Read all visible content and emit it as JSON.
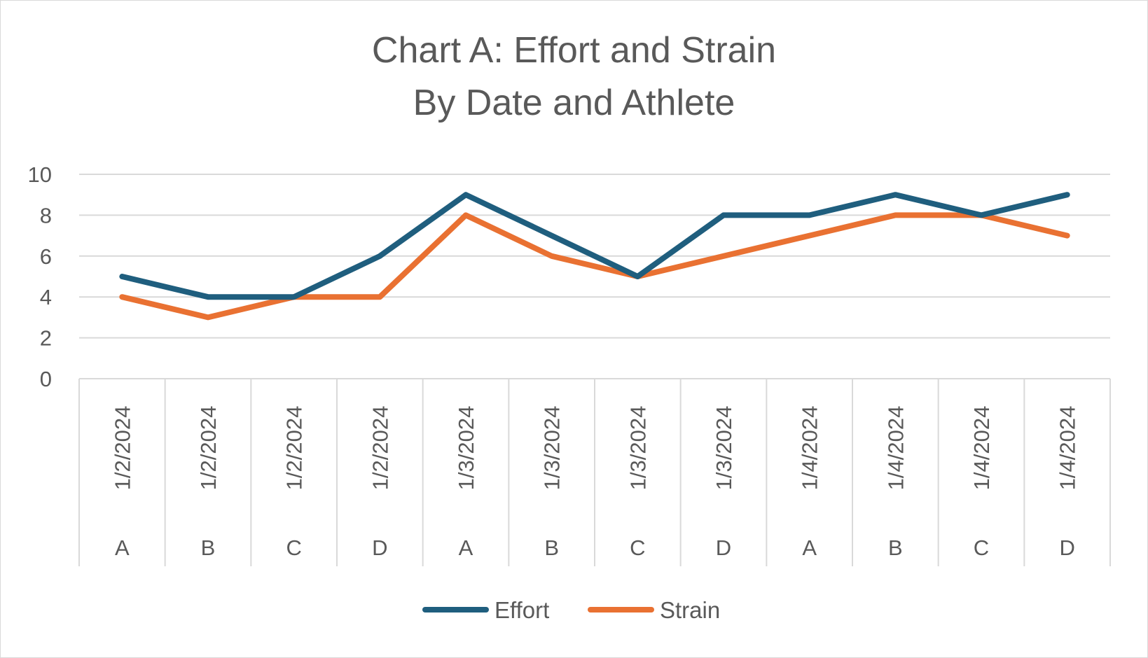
{
  "chart_data": {
    "type": "line",
    "title": "Chart A: Effort and Strain",
    "subtitle": "By Date and Athlete",
    "xlabel": "",
    "ylabel": "",
    "ylim": [
      0,
      10
    ],
    "y_ticks": [
      "0",
      "2",
      "4",
      "6",
      "8",
      "10"
    ],
    "grid": true,
    "legend_position": "bottom",
    "categories": [
      {
        "date": "1/2/2024",
        "athlete": "A"
      },
      {
        "date": "1/2/2024",
        "athlete": "B"
      },
      {
        "date": "1/2/2024",
        "athlete": "C"
      },
      {
        "date": "1/2/2024",
        "athlete": "D"
      },
      {
        "date": "1/3/2024",
        "athlete": "A"
      },
      {
        "date": "1/3/2024",
        "athlete": "B"
      },
      {
        "date": "1/3/2024",
        "athlete": "C"
      },
      {
        "date": "1/3/2024",
        "athlete": "D"
      },
      {
        "date": "1/4/2024",
        "athlete": "A"
      },
      {
        "date": "1/4/2024",
        "athlete": "B"
      },
      {
        "date": "1/4/2024",
        "athlete": "C"
      },
      {
        "date": "1/4/2024",
        "athlete": "D"
      }
    ],
    "series": [
      {
        "name": "Effort",
        "color": "#1f5e7e",
        "values": [
          5,
          4,
          4,
          6,
          9,
          7,
          5,
          8,
          8,
          9,
          8,
          9
        ]
      },
      {
        "name": "Strain",
        "color": "#e97132",
        "values": [
          4,
          3,
          4,
          4,
          8,
          6,
          5,
          6,
          7,
          8,
          8,
          7
        ]
      }
    ]
  }
}
